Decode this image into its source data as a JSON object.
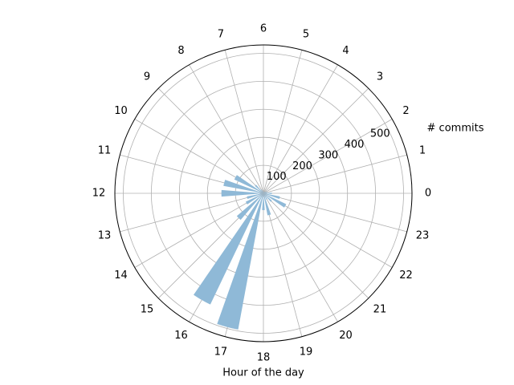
{
  "chart_data": {
    "type": "polar-bar",
    "xlabel": "Hour of the day",
    "ylabel": "# commits",
    "categories": [
      "0",
      "1",
      "2",
      "3",
      "4",
      "5",
      "6",
      "7",
      "8",
      "9",
      "10",
      "11",
      "12",
      "13",
      "14",
      "15",
      "16",
      "17",
      "18",
      "19",
      "20",
      "21",
      "22",
      "23"
    ],
    "values": [
      30,
      15,
      10,
      8,
      5,
      5,
      5,
      10,
      15,
      40,
      115,
      145,
      150,
      60,
      70,
      125,
      440,
      495,
      60,
      80,
      25,
      40,
      90,
      60
    ],
    "color": "#8fb9d7",
    "ylim": [
      0,
      530
    ],
    "yticks": [
      100,
      200,
      300,
      400,
      500
    ],
    "grid": true
  }
}
